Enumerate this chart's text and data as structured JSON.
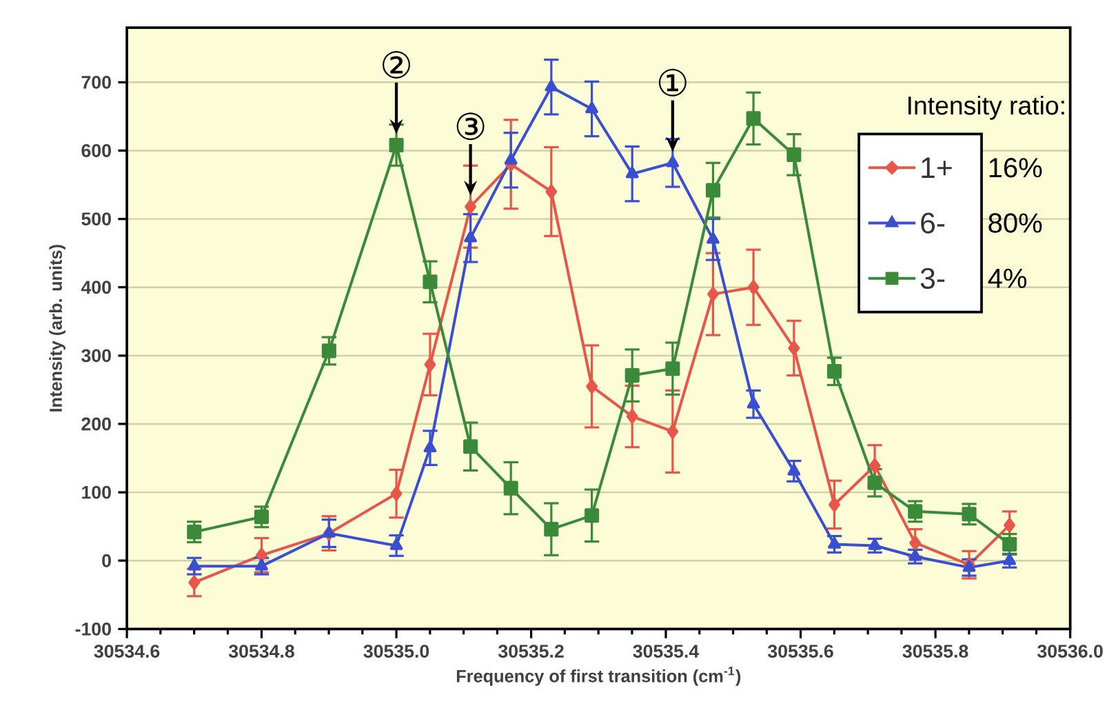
{
  "chart_data": {
    "type": "line",
    "xlabel": "Frequency of first transition (cm$^{-1}$)",
    "ylabel": "Intensity (arb. units)",
    "legend_title": "Intensity ratio:",
    "x": [
      30534.7,
      30534.8,
      30534.9,
      30535.0,
      30535.05,
      30535.11,
      30535.17,
      30535.23,
      30535.29,
      30535.35,
      30535.41,
      30535.47,
      30535.53,
      30535.59,
      30535.65,
      30535.71,
      30535.77,
      30535.85,
      30535.91
    ],
    "series": [
      {
        "name": "1+",
        "color": "#e8564a",
        "marker": "diamond",
        "values": [
          -32,
          8,
          40,
          98,
          287,
          518,
          580,
          540,
          255,
          211,
          189,
          390,
          400,
          311,
          82,
          139,
          26,
          -6,
          52
        ],
        "errors": [
          20,
          25,
          25,
          35,
          45,
          60,
          65,
          65,
          60,
          45,
          60,
          60,
          55,
          40,
          35,
          30,
          20,
          20,
          20
        ]
      },
      {
        "name": "6-",
        "color": "#3a4fd0",
        "marker": "triangle",
        "values": [
          -8,
          -8,
          40,
          22,
          165,
          472,
          586,
          693,
          661,
          566,
          582,
          470,
          229,
          131,
          24,
          22,
          6,
          -10,
          0
        ],
        "errors": [
          12,
          12,
          20,
          15,
          25,
          35,
          40,
          40,
          40,
          40,
          35,
          30,
          20,
          15,
          12,
          10,
          10,
          12,
          10
        ]
      },
      {
        "name": "3-",
        "color": "#3a8a3a",
        "marker": "square",
        "values": [
          42,
          64,
          307,
          608,
          408,
          167,
          106,
          46,
          66,
          271,
          281,
          542,
          647,
          594,
          277,
          114,
          72,
          68,
          24
        ],
        "errors": [
          15,
          15,
          20,
          30,
          30,
          35,
          38,
          38,
          38,
          38,
          38,
          40,
          38,
          30,
          20,
          20,
          15,
          15,
          15
        ]
      }
    ],
    "annotations": [
      "16%",
      "80%",
      "4%",
      {
        "text": "②",
        "x": 30535.0,
        "y": 608
      },
      {
        "text": "③",
        "x": 30535.11,
        "y": 518
      },
      {
        "text": "①",
        "x": 30535.41,
        "y": 582
      }
    ],
    "xlim": [
      30534.6,
      30536.0
    ],
    "xticks": [
      30534.6,
      30534.8,
      {
        "value": 30535.0,
        "label": "30535.0"
      },
      30535.2,
      30535.4,
      30535.6,
      30535.8,
      {
        "value": 30536.0,
        "label": "30536.0"
      }
    ],
    "ylim": [
      -100,
      780
    ],
    "yticks": [
      -100,
      0,
      100,
      200,
      300,
      400,
      500,
      600,
      700
    ],
    "grid": "y",
    "legend": "top right"
  }
}
